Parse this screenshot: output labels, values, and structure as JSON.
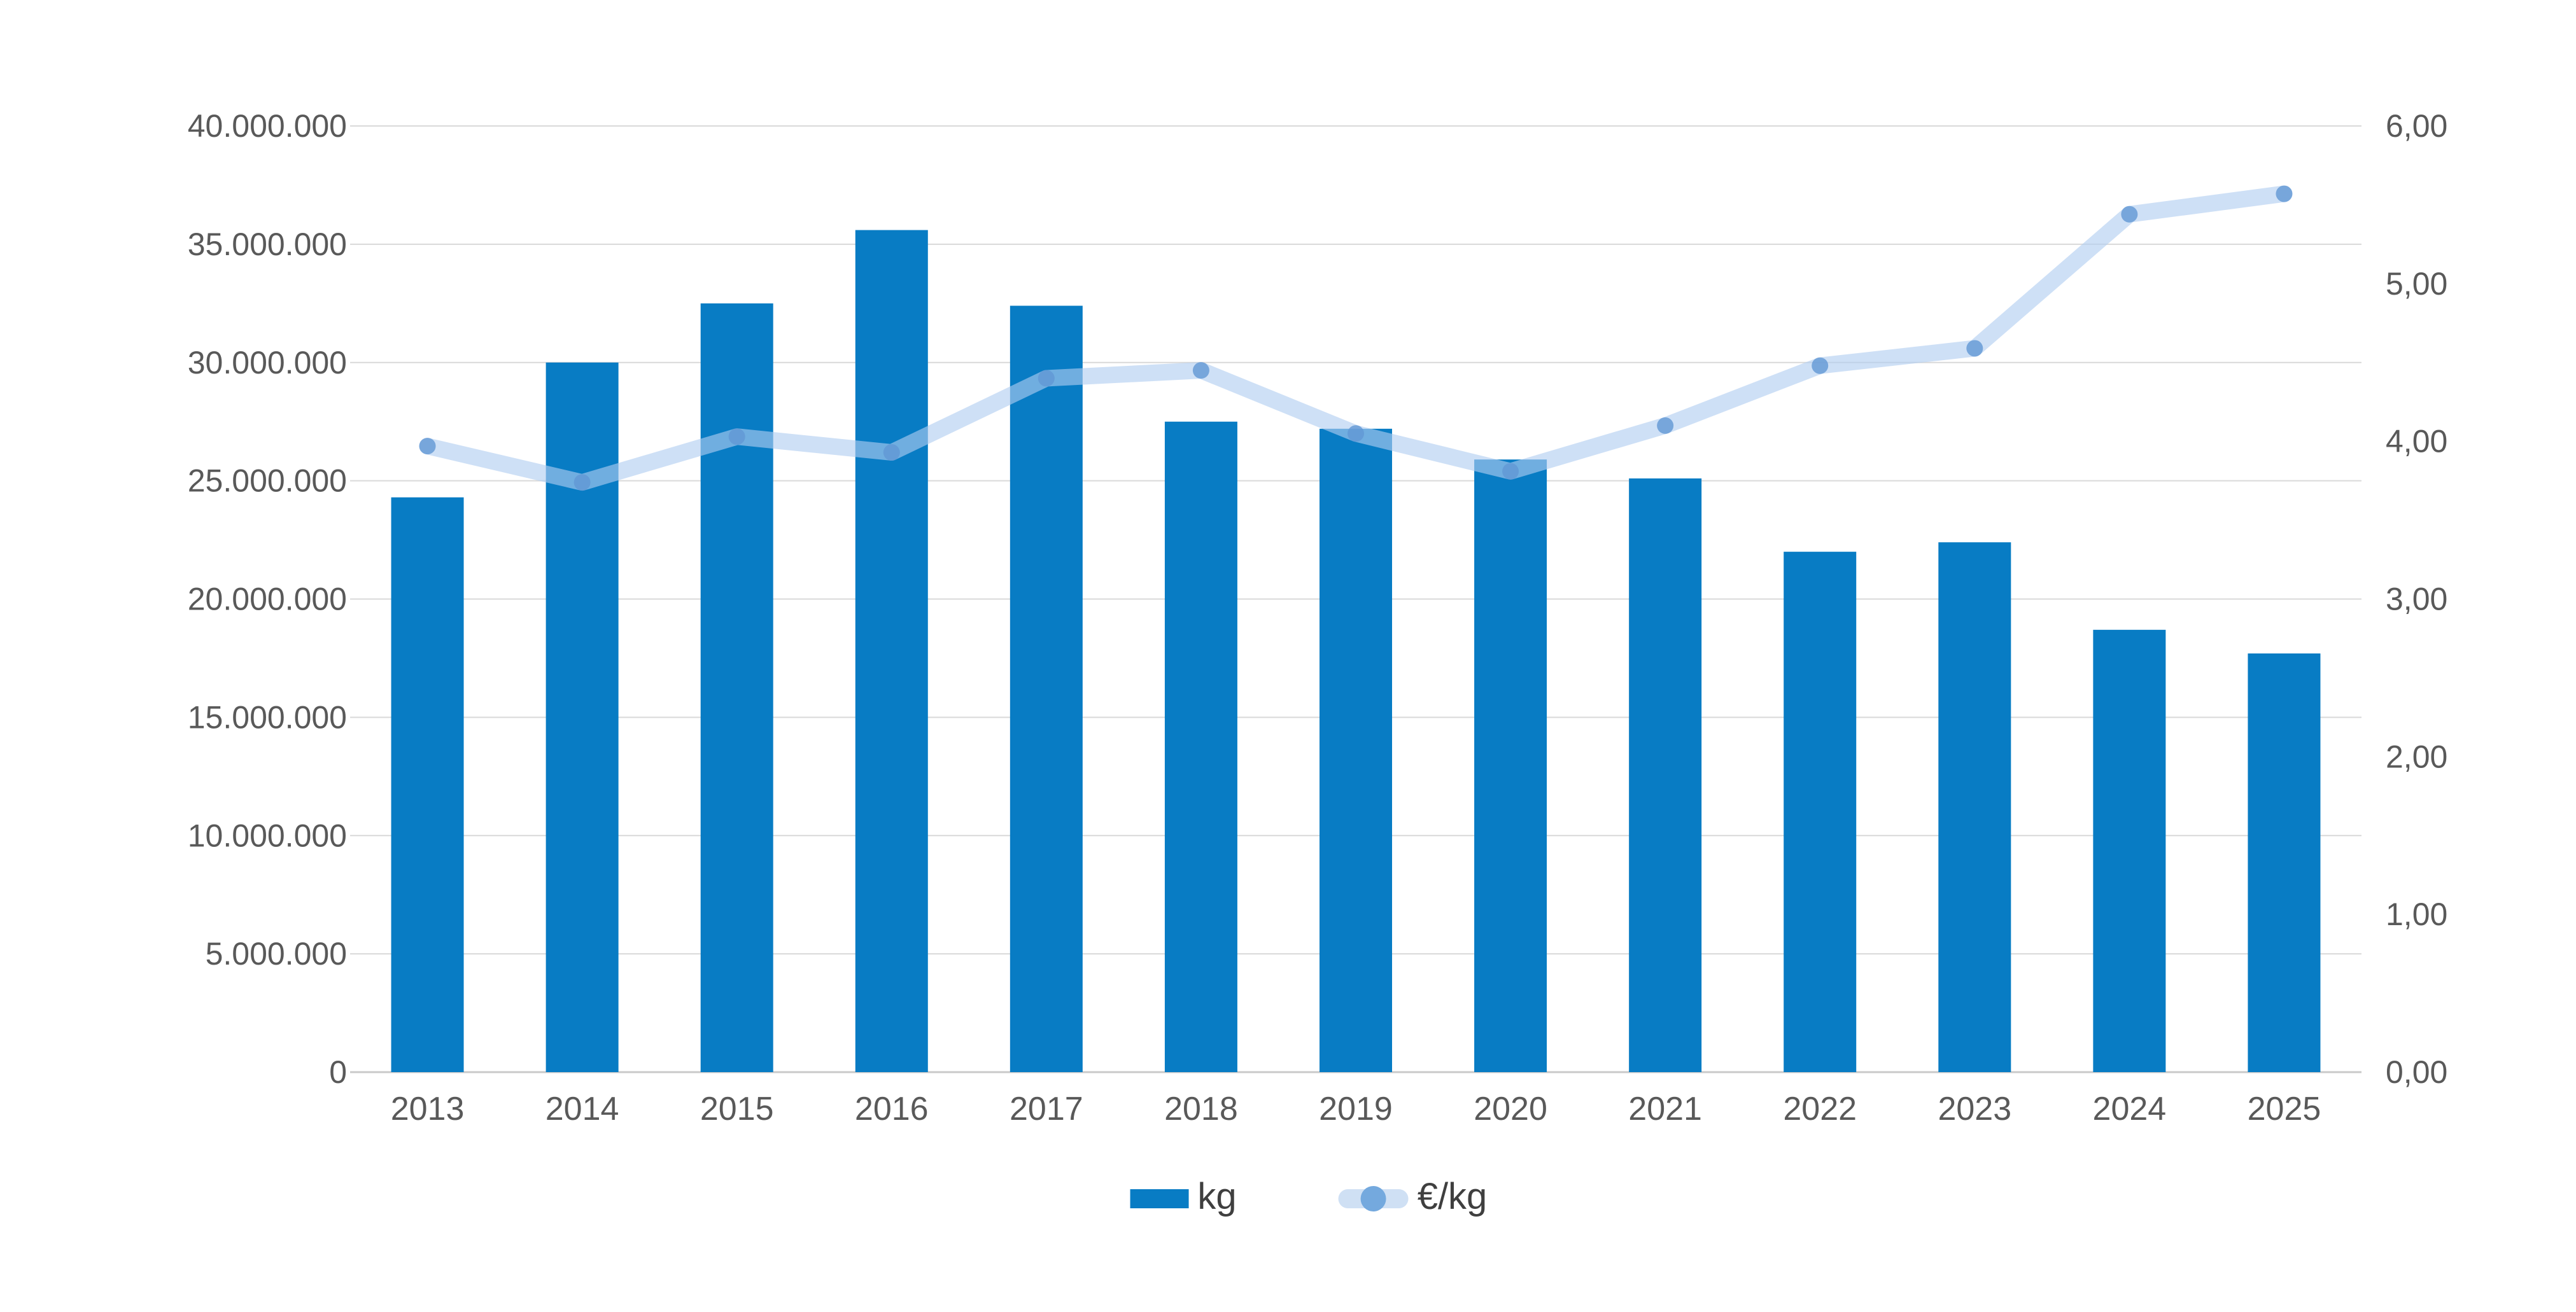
{
  "chart_data": {
    "type": "combo-bar-line",
    "title": "",
    "categories": [
      "2013",
      "2014",
      "2015",
      "2016",
      "2017",
      "2018",
      "2019",
      "2020",
      "2021",
      "2022",
      "2023",
      "2024",
      "2025"
    ],
    "series": [
      {
        "name": "kg",
        "type": "bar",
        "axis": "left",
        "values": [
          24300000,
          30000000,
          32500000,
          35600000,
          32400000,
          27500000,
          27200000,
          25900000,
          25100000,
          22000000,
          22400000,
          18700000,
          17700000
        ]
      },
      {
        "name": "€/kg",
        "type": "line",
        "axis": "right",
        "values": [
          3.97,
          3.74,
          4.03,
          3.93,
          4.4,
          4.45,
          4.05,
          3.81,
          4.1,
          4.48,
          4.59,
          5.44,
          5.57
        ]
      }
    ],
    "left_axis": {
      "min": 0,
      "max": 40000000,
      "step": 5000000,
      "tick_labels": [
        "40.000.000",
        "35.000.000",
        "30.000.000",
        "25.000.000",
        "20.000.000",
        "15.000.000",
        "10.000.000",
        "5.000.000",
        "0"
      ]
    },
    "right_axis": {
      "min": 0,
      "max": 6,
      "step": 1,
      "tick_labels": [
        "6,00",
        "5,00",
        "4,00",
        "3,00",
        "2,00",
        "1,00",
        "0,00"
      ]
    },
    "grid": true,
    "legend": {
      "position": "bottom",
      "items": [
        {
          "label": "kg",
          "swatch": "bar-swatch"
        },
        {
          "label": "€/kg",
          "swatch": "line-marker-swatch"
        }
      ]
    }
  },
  "colors": {
    "background": "#ffffff",
    "bar": "#087cc4",
    "line_band": "rgba(176,205,240,0.62)",
    "line_band_solid": "#cfe0f4",
    "marker": "rgba(98,151,212,0.80)",
    "marker_solid": "#74a9de",
    "gridline": "#d9d9d9",
    "baseline": "#c9c9c9",
    "axis_text": "#595959",
    "legend_text": "#3f3f3f"
  }
}
